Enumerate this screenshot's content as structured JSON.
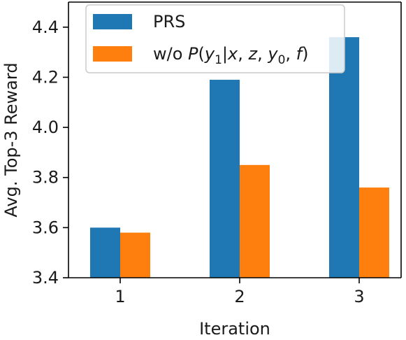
{
  "chart_data": {
    "type": "bar",
    "categories": [
      "1",
      "2",
      "3"
    ],
    "series": [
      {
        "name": "PRS",
        "values": [
          3.6,
          4.19,
          4.36
        ],
        "color": "#1f77b4"
      },
      {
        "name": "w/o P(y1|x, z, y0, f)",
        "values": [
          3.58,
          3.85,
          3.76
        ],
        "color": "#ff7f0e"
      }
    ],
    "legend_label_parts": [
      [
        {
          "t": "PRS",
          "it": false
        }
      ],
      [
        {
          "t": "w/o ",
          "it": false
        },
        {
          "t": "P",
          "it": true
        },
        {
          "t": "(",
          "it": false
        },
        {
          "t": "y",
          "it": true
        },
        {
          "t": "1",
          "it": false,
          "sub": true
        },
        {
          "t": "|",
          "it": false
        },
        {
          "t": "x",
          "it": true
        },
        {
          "t": ", ",
          "it": false
        },
        {
          "t": "z",
          "it": true
        },
        {
          "t": ", ",
          "it": false
        },
        {
          "t": "y",
          "it": true
        },
        {
          "t": "0",
          "it": false,
          "sub": true
        },
        {
          "t": ", ",
          "it": false
        },
        {
          "t": "f",
          "it": true
        },
        {
          "t": ")",
          "it": false
        }
      ]
    ],
    "xlabel": "Iteration",
    "ylabel": "Avg. Top-3 Reward",
    "ylim": [
      3.4,
      4.5
    ],
    "yticks": [
      3.4,
      3.6,
      3.8,
      4.0,
      4.2,
      4.4
    ],
    "ytick_labels": [
      "3.4",
      "3.6",
      "3.8",
      "4.0",
      "4.2",
      "4.4"
    ],
    "grid": false,
    "legend_position": "top-left"
  }
}
